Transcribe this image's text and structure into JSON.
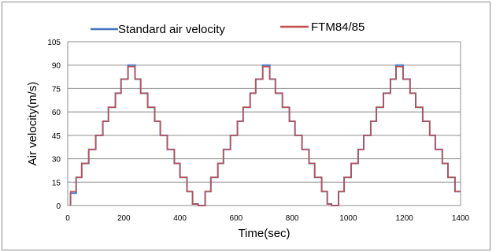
{
  "chart_data": {
    "type": "line",
    "title": "",
    "xlabel": "Time(sec)",
    "ylabel": "Air velocity(m/s)",
    "xlim": [
      0,
      1400
    ],
    "ylim": [
      0,
      105
    ],
    "xticks": [
      0,
      200,
      400,
      600,
      800,
      1000,
      1200,
      1400
    ],
    "yticks": [
      0,
      15,
      30,
      45,
      60,
      75,
      90,
      105
    ],
    "grid": "horizontal",
    "legend": "top",
    "series": [
      {
        "name": "Standard air velocity",
        "color": "#4472c4",
        "x": [
          10,
          10,
          30,
          30,
          50,
          50,
          75,
          75,
          100,
          100,
          125,
          125,
          145,
          145,
          170,
          170,
          190,
          190,
          215,
          215,
          240,
          240,
          260,
          260,
          285,
          285,
          310,
          310,
          330,
          330,
          355,
          355,
          380,
          380,
          400,
          400,
          425,
          425,
          445,
          445,
          465,
          465,
          490,
          490,
          510,
          510,
          535,
          535,
          555,
          555,
          580,
          580,
          605,
          605,
          625,
          625,
          650,
          650,
          670,
          670,
          695,
          695,
          720,
          720,
          740,
          740,
          765,
          765,
          790,
          790,
          810,
          810,
          835,
          835,
          860,
          860,
          880,
          880,
          905,
          905,
          925,
          925,
          940,
          940,
          965,
          965,
          985,
          985,
          1010,
          1010,
          1035,
          1035,
          1055,
          1055,
          1080,
          1080,
          1100,
          1100,
          1125,
          1125,
          1150,
          1150,
          1170,
          1170,
          1195,
          1195,
          1220,
          1220,
          1240,
          1240,
          1265,
          1265,
          1290,
          1290,
          1310,
          1310,
          1335,
          1335,
          1355,
          1355,
          1380,
          1380,
          1400
        ],
        "y": [
          0,
          8,
          8,
          18,
          18,
          27,
          27,
          36,
          36,
          45,
          45,
          54,
          54,
          63,
          63,
          72,
          72,
          81,
          81,
          90,
          90,
          81,
          81,
          72,
          72,
          63,
          63,
          54,
          54,
          45,
          45,
          36,
          36,
          27,
          27,
          18,
          18,
          9,
          9,
          1,
          1,
          0,
          0,
          9,
          9,
          18,
          18,
          27,
          27,
          36,
          36,
          45,
          45,
          54,
          54,
          63,
          63,
          72,
          72,
          81,
          81,
          90,
          90,
          81,
          81,
          72,
          72,
          63,
          63,
          54,
          54,
          45,
          45,
          36,
          36,
          27,
          27,
          18,
          18,
          9,
          9,
          1,
          1,
          0,
          0,
          9,
          9,
          18,
          18,
          27,
          27,
          36,
          36,
          45,
          45,
          54,
          54,
          63,
          63,
          72,
          72,
          81,
          81,
          90,
          90,
          81,
          81,
          72,
          72,
          63,
          63,
          54,
          54,
          45,
          45,
          36,
          36,
          27,
          27,
          18,
          18,
          9,
          9
        ]
      },
      {
        "name": "FTM84/85",
        "color": "#c0504d",
        "x": [
          10,
          10,
          30,
          30,
          50,
          50,
          75,
          75,
          100,
          100,
          125,
          125,
          145,
          145,
          170,
          170,
          190,
          190,
          215,
          215,
          240,
          240,
          260,
          260,
          285,
          285,
          310,
          310,
          330,
          330,
          355,
          355,
          380,
          380,
          400,
          400,
          425,
          425,
          445,
          445,
          465,
          465,
          490,
          490,
          510,
          510,
          535,
          535,
          555,
          555,
          580,
          580,
          605,
          605,
          625,
          625,
          650,
          650,
          670,
          670,
          695,
          695,
          720,
          720,
          740,
          740,
          765,
          765,
          790,
          790,
          810,
          810,
          835,
          835,
          860,
          860,
          880,
          880,
          905,
          905,
          925,
          925,
          940,
          940,
          965,
          965,
          985,
          985,
          1010,
          1010,
          1035,
          1035,
          1055,
          1055,
          1080,
          1080,
          1100,
          1100,
          1125,
          1125,
          1150,
          1150,
          1170,
          1170,
          1195,
          1195,
          1220,
          1220,
          1240,
          1240,
          1265,
          1265,
          1290,
          1290,
          1310,
          1310,
          1335,
          1335,
          1355,
          1355,
          1380,
          1380,
          1400
        ],
        "y": [
          0,
          9,
          9,
          18,
          18,
          27,
          27,
          36,
          36,
          45,
          45,
          54,
          54,
          63,
          63,
          72,
          72,
          81,
          81,
          89,
          89,
          81,
          81,
          72,
          72,
          63,
          63,
          54,
          54,
          45,
          45,
          36,
          36,
          27,
          27,
          18,
          18,
          9,
          9,
          1,
          1,
          0,
          0,
          9,
          9,
          18,
          18,
          27,
          27,
          36,
          36,
          45,
          45,
          54,
          54,
          63,
          63,
          72,
          72,
          81,
          81,
          89,
          89,
          81,
          81,
          72,
          72,
          63,
          63,
          54,
          54,
          45,
          45,
          36,
          36,
          27,
          27,
          18,
          18,
          9,
          9,
          1,
          1,
          0,
          0,
          9,
          9,
          18,
          18,
          27,
          27,
          36,
          36,
          45,
          45,
          54,
          54,
          63,
          63,
          72,
          72,
          81,
          81,
          89,
          89,
          81,
          81,
          72,
          72,
          63,
          63,
          54,
          54,
          45,
          45,
          36,
          36,
          27,
          27,
          18,
          18,
          9,
          9
        ]
      }
    ]
  }
}
